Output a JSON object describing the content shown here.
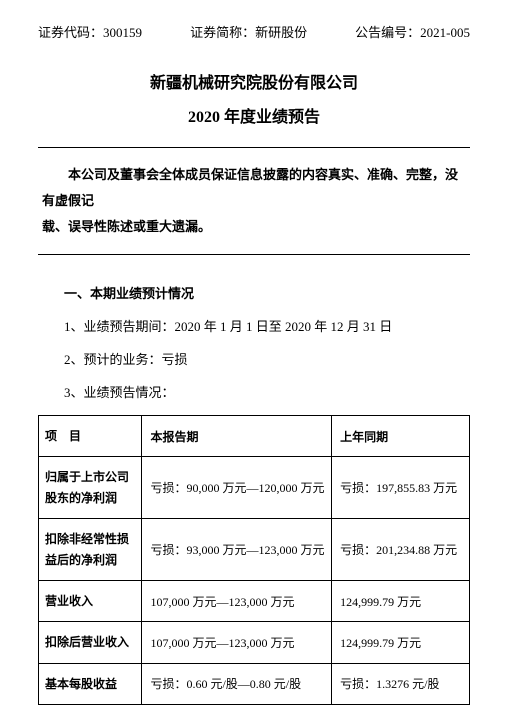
{
  "header": {
    "code_label": "证券代码：",
    "code_value": "300159",
    "short_label": "证券简称：",
    "short_value": "新研股份",
    "ann_label": "公告编号：",
    "ann_value": "2021-005"
  },
  "title": {
    "line1": "新疆机械研究院股份有限公司",
    "line2": "2020 年度业绩预告"
  },
  "statement": {
    "l1": "本公司及董事会全体成员保证信息披露的内容真实、准确、完整，没有虚假记",
    "l2": "载、误导性陈述或重大遗漏。"
  },
  "section_heading": "一、本期业绩预计情况",
  "body": {
    "l1": "1、业绩预告期间：2020 年 1 月 1 日至 2020 年 12 月 31 日",
    "l2": "2、预计的业务：亏损",
    "l3": "3、业绩预告情况："
  },
  "table": {
    "columns": {
      "c0": "项　目",
      "c1": "本报告期",
      "c2": "上年同期"
    },
    "rows": [
      {
        "label": "归属于上市公司股东的净利润",
        "curr": "亏损：90,000 万元—120,000 万元",
        "prev": "亏损：197,855.83 万元"
      },
      {
        "label": "扣除非经常性损益后的净利润",
        "curr": "亏损：93,000 万元—123,000 万元",
        "prev": "亏损：201,234.88 万元"
      },
      {
        "label": "营业收入",
        "curr": "107,000 万元—123,000 万元",
        "prev": "124,999.79 万元"
      },
      {
        "label": "扣除后营业收入",
        "curr": "107,000 万元—123,000 万元",
        "prev": "124,999.79 万元"
      },
      {
        "label": "基本每股收益",
        "curr": "亏损：0.60 元/股—0.80 元/股",
        "prev": "亏损：1.3276 元/股"
      }
    ]
  },
  "styling": {
    "background_color": "#ffffff",
    "text_color": "#000000",
    "border_color": "#000000",
    "body_fontsize": 13,
    "title_fontsize": 16,
    "table_fontsize": 12,
    "font_family": "SimSun"
  }
}
